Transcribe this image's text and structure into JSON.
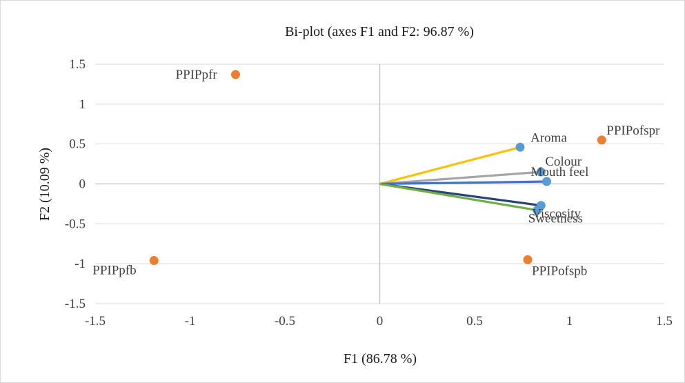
{
  "chart_data": {
    "type": "scatter",
    "title": "Bi-plot (axes F1 and F2: 96.87 %)",
    "xlabel": "F1 (86.78 %)",
    "ylabel": "F2 (10.09 %)",
    "xlim": [
      -1.5,
      1.5
    ],
    "ylim": [
      -1.5,
      1.5
    ],
    "x_ticks": [
      -1.5,
      -1,
      -0.5,
      0,
      0.5,
      1,
      1.5
    ],
    "y_ticks": [
      -1.5,
      -1,
      -0.5,
      0,
      0.5,
      1,
      1.5
    ],
    "x_tick_labels": [
      "-1.5",
      "-1",
      "-0.5",
      "0",
      "0.5",
      "1",
      "1.5"
    ],
    "y_tick_labels": [
      "-1.5",
      "-1",
      "-0.5",
      "0",
      "0.5",
      "1",
      "1.5"
    ],
    "grid": "horizontal",
    "colors": {
      "variable_point": "#5b9bd5",
      "observation_point": "#ed7d31",
      "axis_line": "#bfbfbf",
      "gridline": "#d9d9d9"
    },
    "variables": [
      {
        "label": "Aroma",
        "x": 0.74,
        "y": 0.46,
        "color": "#ffc000"
      },
      {
        "label": "Colour",
        "x": 0.85,
        "y": 0.15,
        "color": "#a5a5a5"
      },
      {
        "label": "Mouth feel",
        "x": 0.88,
        "y": 0.03,
        "color": "#4472c4"
      },
      {
        "label": "Viscosity",
        "x": 0.85,
        "y": -0.27,
        "color": "#264478"
      },
      {
        "label": "Sweetness",
        "x": 0.83,
        "y": -0.33,
        "color": "#70ad47"
      }
    ],
    "observations": [
      {
        "label": "PPIPpfr",
        "x": -0.76,
        "y": 1.37
      },
      {
        "label": "PPIPofspr",
        "x": 1.17,
        "y": 0.55
      },
      {
        "label": "PPIPpfb",
        "x": -1.19,
        "y": -0.96
      },
      {
        "label": "PPIPofspb",
        "x": 0.78,
        "y": -0.95
      }
    ]
  }
}
